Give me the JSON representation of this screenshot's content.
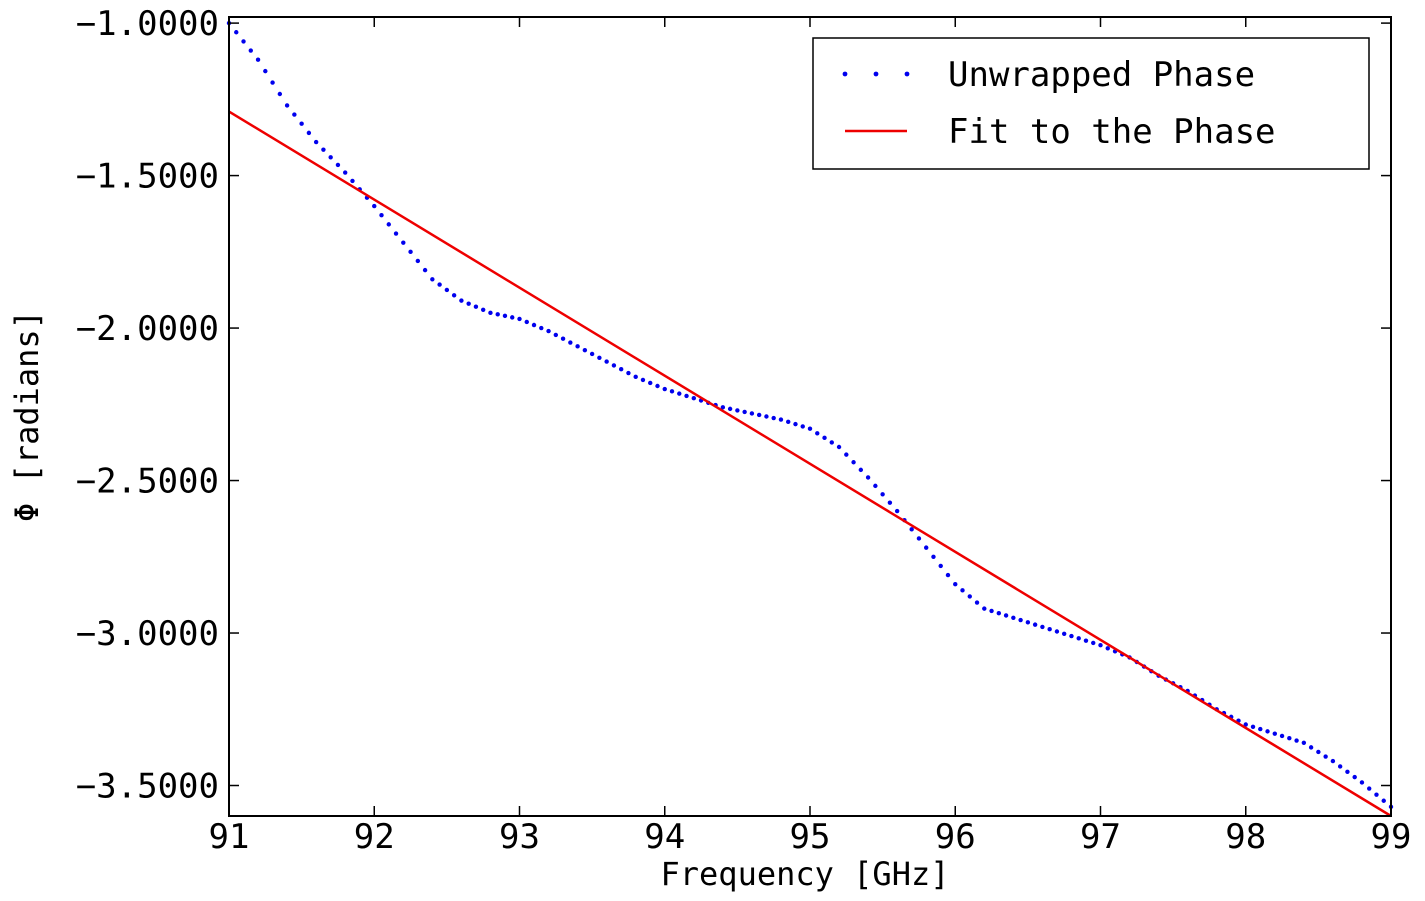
{
  "chart_data": {
    "type": "line",
    "xlabel": "Frequency [GHz]",
    "ylabel": "Φ [radians]",
    "xlim": [
      91,
      99
    ],
    "ylim": [
      -3.6,
      -0.98
    ],
    "xticks": [
      91,
      92,
      93,
      94,
      95,
      96,
      97,
      98,
      99
    ],
    "xtick_labels": [
      "91",
      "92",
      "93",
      "94",
      "95",
      "96",
      "97",
      "98",
      "99"
    ],
    "yticks": [
      -1.0,
      -1.5,
      -2.0,
      -2.5,
      -3.0,
      -3.5
    ],
    "ytick_labels": [
      "−1.0000",
      "−1.5000",
      "−2.0000",
      "−2.5000",
      "−3.0000",
      "−3.5000"
    ],
    "grid": false,
    "legend_position": "top-right",
    "series": [
      {
        "name": "Unwrapped Phase",
        "style": "dotted",
        "color": "#0000ee",
        "points": [
          [
            91.0,
            -1.0
          ],
          [
            91.2,
            -1.12
          ],
          [
            91.4,
            -1.27
          ],
          [
            91.6,
            -1.39
          ],
          [
            91.8,
            -1.49
          ],
          [
            92.0,
            -1.6
          ],
          [
            92.2,
            -1.72
          ],
          [
            92.4,
            -1.84
          ],
          [
            92.6,
            -1.91
          ],
          [
            92.8,
            -1.95
          ],
          [
            93.0,
            -1.97
          ],
          [
            93.2,
            -2.01
          ],
          [
            93.4,
            -2.06
          ],
          [
            93.6,
            -2.11
          ],
          [
            93.8,
            -2.16
          ],
          [
            94.0,
            -2.2
          ],
          [
            94.2,
            -2.23
          ],
          [
            94.4,
            -2.26
          ],
          [
            94.6,
            -2.28
          ],
          [
            94.8,
            -2.3
          ],
          [
            95.0,
            -2.33
          ],
          [
            95.2,
            -2.39
          ],
          [
            95.4,
            -2.49
          ],
          [
            95.6,
            -2.6
          ],
          [
            95.8,
            -2.72
          ],
          [
            96.0,
            -2.84
          ],
          [
            96.2,
            -2.92
          ],
          [
            96.4,
            -2.95
          ],
          [
            96.6,
            -2.98
          ],
          [
            96.8,
            -3.01
          ],
          [
            97.0,
            -3.04
          ],
          [
            97.2,
            -3.08
          ],
          [
            97.4,
            -3.14
          ],
          [
            97.6,
            -3.19
          ],
          [
            97.8,
            -3.25
          ],
          [
            98.0,
            -3.3
          ],
          [
            98.2,
            -3.33
          ],
          [
            98.4,
            -3.36
          ],
          [
            98.6,
            -3.42
          ],
          [
            98.8,
            -3.49
          ],
          [
            99.0,
            -3.57
          ]
        ]
      },
      {
        "name": "Fit to the Phase",
        "style": "solid",
        "color": "#ee0000",
        "points": [
          [
            91.0,
            -1.29
          ],
          [
            99.0,
            -3.6
          ]
        ]
      }
    ]
  }
}
